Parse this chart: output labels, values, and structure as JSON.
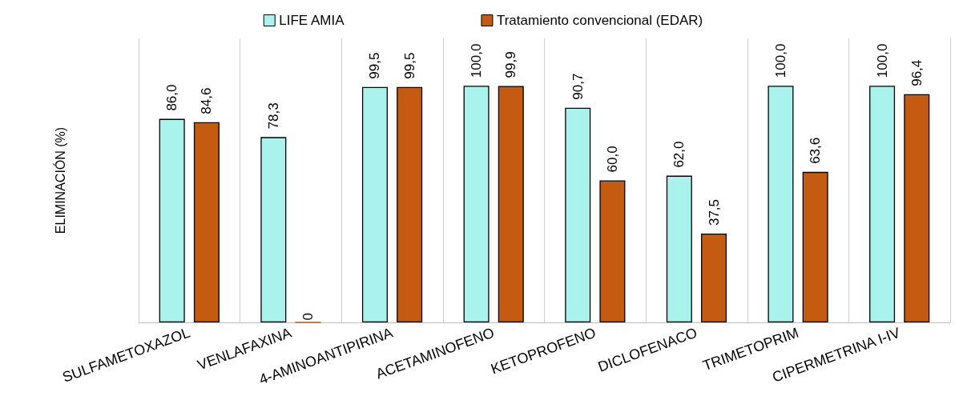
{
  "chart_data": {
    "type": "bar",
    "ylabel": "ELIMINACIÓN (%)",
    "categories": [
      "SULFAMETOXAZOL",
      "VENLAFAXINA",
      "4-AMINOANTIPIRINA",
      "ACETAMINOFENO",
      "KETOPROFENO",
      "DICLOFENACO",
      "TRIMETOPRIM",
      "CIPERMETRINA I-IV"
    ],
    "series": [
      {
        "name": "LIFE AMIA",
        "color": "#a9f3ec",
        "values": [
          86.0,
          78.3,
          99.5,
          100.0,
          90.7,
          62.0,
          100.0,
          100.0
        ],
        "value_labels": [
          "86,0",
          "78,3",
          "99,5",
          "100,0",
          "90,7",
          "62,0",
          "100,0",
          "100,0"
        ]
      },
      {
        "name": "Tratamiento convencional (EDAR)",
        "color": "#c55a11",
        "values": [
          84.6,
          0,
          99.5,
          99.9,
          60.0,
          37.5,
          63.6,
          96.4
        ],
        "value_labels": [
          "84,6",
          "0",
          "99,5",
          "99,9",
          "60,0",
          "37,5",
          "63,6",
          "96,4"
        ]
      }
    ],
    "grid": "x",
    "legend": "top"
  }
}
